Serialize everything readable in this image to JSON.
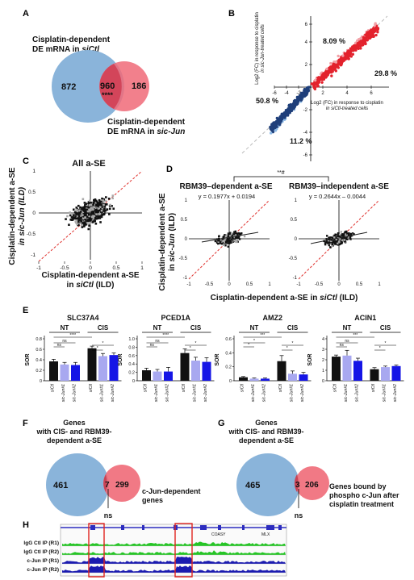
{
  "panels": {
    "a": "A",
    "b": "B",
    "c": "C",
    "d": "D",
    "e": "E",
    "f": "F",
    "g": "G",
    "h": "H"
  },
  "panel_a": {
    "label_left_1": "Cisplatin-dependent",
    "label_left_2": "DE mRNA in ",
    "label_left_ital": "siCtl",
    "label_right_1": "Cisplatin-dependent",
    "label_right_2": "DE mRNA in ",
    "label_right_ital": "sic-Jun",
    "left_only": "872",
    "overlap": "960",
    "overlap_sig": "****",
    "right_only": "186"
  },
  "panel_b": {
    "ylabel_1": "Log2 (FC) in response to cisplatin",
    "ylabel_2": "in sic-Jun-treated cells",
    "xlabel_1": "Log2 (FC) in response to cisplatin",
    "xlabel_2": "in siCtl-treated cells",
    "x_ticks": [
      "-6",
      "-4",
      "-2",
      "2",
      "4",
      "6"
    ],
    "y_ticks": [
      "6",
      "4",
      "2",
      "-2",
      "-4",
      "-6"
    ],
    "pct_upper_light": "8.09 %",
    "pct_upper_dark": "29.8 %",
    "pct_lower_dark": "50.8 %",
    "pct_lower_light": "11.2 %"
  },
  "panel_c": {
    "title": "All a-SE",
    "ylabel_1": "Cisplatin-dependent a-SE",
    "ylabel_2": "in sic-Jun (ILD)",
    "xlabel_1": "Cisplatin-dependent a-SE",
    "xlabel_2": "in siCtl (ILD)",
    "x_ticks": [
      "-1",
      "-0.5",
      "0",
      "0.5",
      "1"
    ],
    "y_ticks": [
      "1",
      "0.5",
      "0",
      "-0.5",
      "-1"
    ]
  },
  "panel_d": {
    "sig": "**#",
    "left_title": "RBM39–dependent a-SE",
    "right_title": "RBM39–independent a-SE",
    "left_eq": "y = 0.1977x + 0.0194",
    "right_eq": "y = 0.2644x – 0.0044",
    "ylabel_1": "Cisplatin-dependent a-SE",
    "ylabel_2": "in sic-Jun (ILD)",
    "xlabel": "Cisplatin-dependent a-SE in siCtl (ILD)",
    "x_ticks": [
      "-1",
      "-0.5",
      "0",
      "0.5",
      "1"
    ],
    "y_ticks": [
      "1",
      "0.5",
      "0",
      "-0.5",
      "-1"
    ]
  },
  "chart_data": [
    {
      "type": "bar",
      "title": "SLC37A4",
      "ylabel": "SOR",
      "ylim": [
        0,
        0.8
      ],
      "yticks": [
        "0",
        "0.2",
        "0.4",
        "0.6",
        "0.8"
      ],
      "groups": [
        "NT",
        "CIS"
      ],
      "categories": [
        "siCtl",
        "sic-Jun#1",
        "sic-Jun#2",
        "siCtl",
        "sic-Jun#1",
        "sic-Jun#2"
      ],
      "values": [
        0.37,
        0.31,
        0.3,
        0.62,
        0.47,
        0.49
      ],
      "errors": [
        0.04,
        0.04,
        0.05,
        0.04,
        0.05,
        0.04
      ],
      "sig": [
        "****",
        "ns",
        "ns",
        "*",
        "*"
      ]
    },
    {
      "type": "bar",
      "title": "PCED1A",
      "ylabel": "SOR",
      "ylim": [
        0,
        1.0
      ],
      "yticks": [
        "0",
        "0.2",
        "0.4",
        "0.6",
        "0.8",
        "1.0"
      ],
      "groups": [
        "NT",
        "CIS"
      ],
      "categories": [
        "siCtl",
        "sic-Jun#1",
        "sic-Jun#2",
        "siCtl",
        "sic-Jun#1",
        "sic-Jun#2"
      ],
      "values": [
        0.25,
        0.22,
        0.22,
        0.66,
        0.48,
        0.45
      ],
      "errors": [
        0.05,
        0.05,
        0.1,
        0.1,
        0.08,
        0.1
      ],
      "sig": [
        "****",
        "ns",
        "ns",
        "*",
        "*"
      ]
    },
    {
      "type": "bar",
      "title": "AMZ2",
      "ylabel": "SOR",
      "ylim": [
        0,
        0.6
      ],
      "yticks": [
        "0",
        "0.2",
        "0.4",
        "0.6"
      ],
      "groups": [
        "NT",
        "CIS"
      ],
      "categories": [
        "siCtl",
        "sic-Jun#1",
        "sic-Jun#2",
        "siCtl",
        "sic-Jun#1",
        "sic-Jun#2"
      ],
      "values": [
        0.05,
        0.03,
        0.03,
        0.28,
        0.1,
        0.09
      ],
      "errors": [
        0.01,
        0.01,
        0.01,
        0.08,
        0.04,
        0.03
      ],
      "sig": [
        "***",
        "*",
        "*",
        "*",
        "*"
      ]
    },
    {
      "type": "bar",
      "title": "ACIN1",
      "ylabel": "SOR",
      "ylim": [
        0,
        4
      ],
      "yticks": [
        "0",
        "1",
        "2",
        "3",
        "4"
      ],
      "groups": [
        "NT",
        "CIS"
      ],
      "categories": [
        "siCtl",
        "sic-Jun#1",
        "sic-Jun#2",
        "siCtl",
        "sic-Jun#1",
        "sic-Jun#2"
      ],
      "values": [
        2.3,
        2.4,
        1.9,
        1.1,
        1.3,
        1.4
      ],
      "errors": [
        0.15,
        0.5,
        0.25,
        0.15,
        0.1,
        0.1
      ],
      "sig": [
        "***",
        "ns",
        "ns",
        "*",
        "*"
      ]
    }
  ],
  "panel_f": {
    "genes_1": "Genes",
    "genes_2": "with CIS- and RBM39-",
    "genes_3": "dependent a-SE",
    "left_only": "461",
    "overlap": "7",
    "right_only": "299",
    "right_label_1": "c-Jun-dependent",
    "right_label_2": "genes",
    "ns": "ns"
  },
  "panel_g": {
    "genes_1": "Genes",
    "genes_2": "with CIS- and RBM39-",
    "genes_3": "dependent a-SE",
    "left_only": "465",
    "overlap": "3",
    "right_only": "206",
    "right_label_1": "Genes bound by",
    "right_label_2": "phospho c-Jun after",
    "right_label_3": "cisplatin treatment",
    "ns": "ns"
  },
  "panel_h": {
    "tracks": [
      "IgG Ctl IP (R1)",
      "IgG Ctl IP (R2)",
      "c-Jun IP (R1)",
      "c-Jun IP (R2)"
    ],
    "gene_left": "COASY",
    "gene_right": "MLX"
  }
}
